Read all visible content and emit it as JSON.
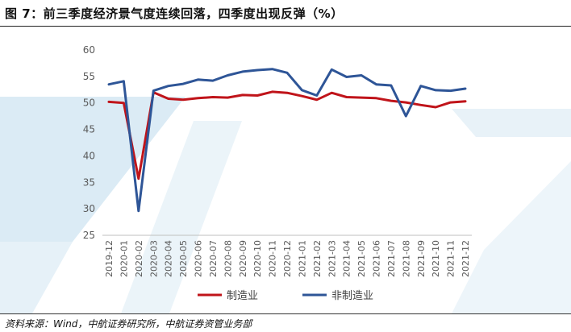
{
  "figure": {
    "title": "图 7：前三季度经济景气度连续回落，四季度出现反弹（%）",
    "source": "资料来源：Wind，中航证券研究所，中航证券资管业务部"
  },
  "chart_data": {
    "type": "line",
    "categories": [
      "2019-12",
      "2020-01",
      "2020-02",
      "2020-03",
      "2020-04",
      "2020-05",
      "2020-06",
      "2020-07",
      "2020-08",
      "2020-09",
      "2020-10",
      "2020-11",
      "2020-12",
      "2021-01",
      "2021-02",
      "2021-03",
      "2021-04",
      "2021-05",
      "2021-06",
      "2021-07",
      "2021-08",
      "2021-09",
      "2021-10",
      "2021-11",
      "2021-12"
    ],
    "series": [
      {
        "name": "制造业",
        "color": "#c0141a",
        "values": [
          50.2,
          50.0,
          35.7,
          52.0,
          50.8,
          50.6,
          50.9,
          51.1,
          51.0,
          51.5,
          51.4,
          52.1,
          51.9,
          51.3,
          50.6,
          51.9,
          51.1,
          51.0,
          50.9,
          50.4,
          50.1,
          49.6,
          49.2,
          50.1,
          50.3
        ]
      },
      {
        "name": "非制造业",
        "color": "#2e5597",
        "values": [
          53.5,
          54.1,
          29.6,
          52.3,
          53.2,
          53.6,
          54.4,
          54.2,
          55.2,
          55.9,
          56.2,
          56.4,
          55.7,
          52.4,
          51.4,
          56.3,
          54.9,
          55.2,
          53.5,
          53.3,
          47.5,
          53.2,
          52.4,
          52.3,
          52.7
        ]
      }
    ],
    "ylim": [
      25,
      60
    ],
    "yticks": [
      25,
      30,
      35,
      40,
      45,
      50,
      55,
      60
    ],
    "grid": false,
    "legend": "bottom"
  },
  "colors": {
    "watermark": "#d2e6f2"
  }
}
